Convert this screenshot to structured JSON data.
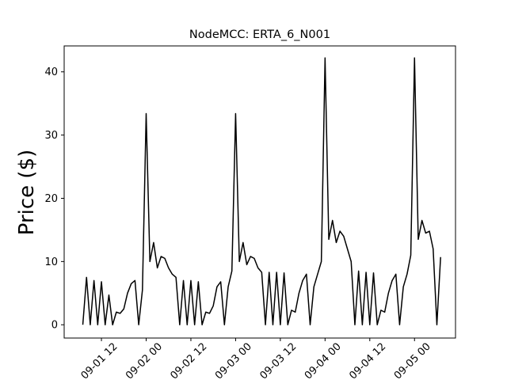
{
  "chart_data": {
    "type": "line",
    "title": "NodeMCC: ERTA_6_N001",
    "y_label": "Price ($)",
    "x": [
      "09-01 07",
      "09-01 08",
      "09-01 09",
      "09-01 10",
      "09-01 11",
      "09-01 12",
      "09-01 13",
      "09-01 14",
      "09-01 15",
      "09-01 16",
      "09-01 17",
      "09-01 18",
      "09-01 19",
      "09-01 20",
      "09-01 21",
      "09-01 22",
      "09-01 23",
      "09-02 00",
      "09-02 01",
      "09-02 02",
      "09-02 03",
      "09-02 04",
      "09-02 05",
      "09-02 06",
      "09-02 07",
      "09-02 08",
      "09-02 09",
      "09-02 10",
      "09-02 11",
      "09-02 12",
      "09-02 13",
      "09-02 14",
      "09-02 15",
      "09-02 16",
      "09-02 17",
      "09-02 18",
      "09-02 19",
      "09-02 20",
      "09-02 21",
      "09-02 22",
      "09-02 23",
      "09-03 00",
      "09-03 01",
      "09-03 02",
      "09-03 03",
      "09-03 04",
      "09-03 05",
      "09-03 06",
      "09-03 07",
      "09-03 08",
      "09-03 09",
      "09-03 10",
      "09-03 11",
      "09-03 12",
      "09-03 13",
      "09-03 14",
      "09-03 15",
      "09-03 16",
      "09-03 17",
      "09-03 18",
      "09-03 19",
      "09-03 20",
      "09-03 21",
      "09-03 22",
      "09-03 23",
      "09-04 00",
      "09-04 01",
      "09-04 02",
      "09-04 03",
      "09-04 04",
      "09-04 05",
      "09-04 06",
      "09-04 07",
      "09-04 08",
      "09-04 09",
      "09-04 10",
      "09-04 11",
      "09-04 12",
      "09-04 13",
      "09-04 14",
      "09-04 15",
      "09-04 16",
      "09-04 17",
      "09-04 18",
      "09-04 19",
      "09-04 20",
      "09-04 21",
      "09-04 22",
      "09-04 23",
      "09-05 00",
      "09-05 01",
      "09-05 02",
      "09-05 03",
      "09-05 04",
      "09-05 05",
      "09-05 06",
      "09-05 07"
    ],
    "series": [
      {
        "color": "#000000",
        "values": [
          0,
          7.5,
          0,
          7,
          0,
          6.8,
          0,
          4.7,
          0,
          2,
          1.8,
          2.5,
          5,
          6.5,
          7,
          0,
          5.5,
          33.4,
          10,
          13,
          9,
          10.8,
          10.5,
          9,
          8,
          7.5,
          0,
          7,
          0,
          7,
          0,
          6.8,
          0,
          2,
          1.8,
          3,
          6,
          6.8,
          0,
          6,
          8.5,
          33.4,
          10,
          13,
          9.5,
          10.8,
          10.5,
          9,
          8.3,
          0,
          8.3,
          0,
          8.3,
          0,
          8.2,
          0,
          2.3,
          2,
          5,
          7,
          8,
          0,
          6,
          8,
          10,
          42.2,
          13.5,
          16.5,
          13,
          14.8,
          14,
          12,
          10,
          0,
          8.5,
          0,
          8.3,
          0,
          8.2,
          0,
          2.3,
          2,
          5,
          7,
          8,
          0,
          6,
          8,
          11,
          42.2,
          13.5,
          16.5,
          14.5,
          14.8,
          12,
          0,
          10.7
        ]
      }
    ],
    "xlim": [
      "09-01 02",
      "09-05 11"
    ],
    "xticks": [
      "09-01 12",
      "09-02 00",
      "09-02 12",
      "09-03 00",
      "09-03 12",
      "09-04 00",
      "09-04 12",
      "09-05 00"
    ],
    "ylim": [
      -2.1,
      44.1
    ],
    "yticks": [
      0,
      10,
      20,
      30,
      40
    ]
  }
}
